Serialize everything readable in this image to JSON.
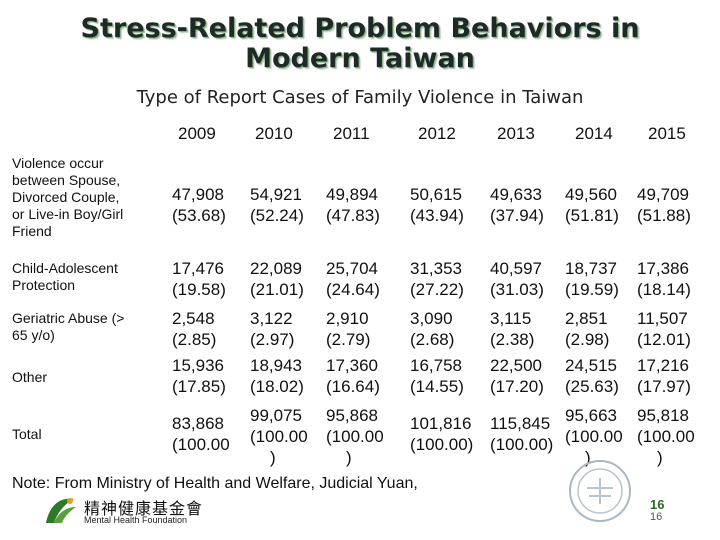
{
  "title_line1": "Stress-Related Problem Behaviors in",
  "title_line2": "Modern Taiwan",
  "subtitle": "Type of Report Cases of Family Violence in Taiwan",
  "years": [
    "2009",
    "2010",
    "2011",
    "2012",
    "2013",
    "2014",
    "2015"
  ],
  "rows": [
    {
      "label": [
        "Violence occur",
        "between Spouse,",
        "Divorced  Couple,",
        "or Live-in Boy/Girl",
        "Friend"
      ],
      "counts": [
        "47,908",
        "54,921",
        "49,894",
        "50,615",
        "49,633",
        "49,560",
        "49,709"
      ],
      "percents": [
        "(53.68)",
        "(52.24)",
        "(47.83)",
        "(43.94)",
        "(37.94)",
        "(51.81)",
        "(51.88)"
      ]
    },
    {
      "label": [
        "Child-Adolescent",
        "Protection"
      ],
      "counts": [
        "17,476",
        "22,089",
        "25,704",
        "31,353",
        "40,597",
        "18,737",
        "17,386"
      ],
      "percents": [
        "(19.58)",
        "(21.01)",
        "(24.64)",
        "(27.22)",
        "(31.03)",
        "(19.59)",
        "(18.14)"
      ]
    },
    {
      "label": [
        "Geriatric Abuse  (>",
        "65 y/o)"
      ],
      "counts": [
        "2,548",
        "3,122",
        "2,910",
        "3,090",
        "3,115",
        "2,851",
        "11,507"
      ],
      "percents": [
        "(2.85)",
        "(2.97)",
        "(2.79)",
        "(2.68)",
        "(2.38)",
        "(2.98)",
        "(12.01)"
      ]
    },
    {
      "label": [
        "Other"
      ],
      "counts": [
        "15,936",
        "18,943",
        "17,360",
        "16,758",
        "22,500",
        "24,515",
        "17,216"
      ],
      "percents": [
        "(17.85)",
        "(18.02)",
        "(16.64)",
        "(14.55)",
        "(17.20)",
        "(25.63)",
        "(17.97)"
      ]
    },
    {
      "label": [
        "Total"
      ],
      "counts": [
        "83,868",
        "99,075",
        "95,868",
        "101,816",
        "115,845",
        "95,663",
        "95,818"
      ],
      "percents": [
        "(100.00",
        "(100.00",
        "(100.00",
        "(100.00)",
        "(100.00)",
        "(100.00",
        "(100.00"
      ],
      "percent_tails": [
        "",
        ")",
        ")",
        "",
        "",
        ")",
        ")"
      ]
    }
  ],
  "note": "Note: From Ministry of Health and Welfare, Judicial Yuan,",
  "logo": {
    "chinese": "精神健康基金會",
    "english": "Mental Health Foundation"
  },
  "page_number": "16",
  "page_number_small": "16",
  "colors": {
    "title": "#1f2a26",
    "title_shadow": "#8ab08a",
    "logo_green": "#2a6a2a"
  }
}
